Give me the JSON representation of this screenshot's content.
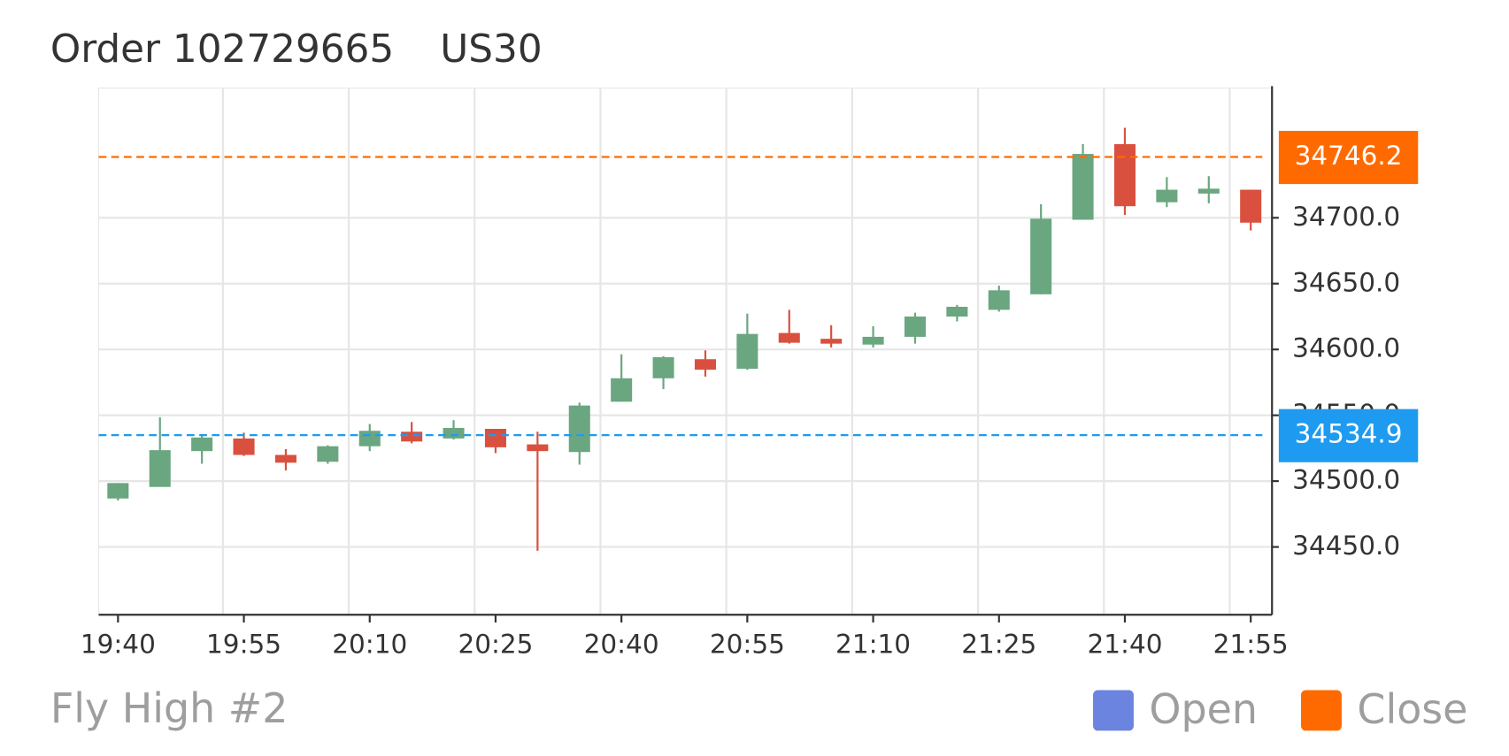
{
  "chart_data": {
    "type": "candlestick",
    "title": "Order 102729665",
    "symbol": "US30",
    "subtitle": "Fly High #2",
    "categories": [
      "19:40",
      null,
      null,
      "19:55",
      null,
      null,
      "20:10",
      null,
      null,
      "20:25",
      null,
      null,
      "20:40",
      null,
      null,
      "20:55",
      null,
      null,
      "21:10",
      null,
      null,
      "21:25",
      null,
      null,
      "21:40",
      null,
      null,
      "21:55"
    ],
    "open": [
      34486.8,
      34495.6,
      34522.8,
      34532.4,
      34519.9,
      34514.7,
      34526.5,
      34537.5,
      34532.4,
      34539.7,
      34527.9,
      34522.1,
      34560.3,
      34578.1,
      34592.6,
      34585.3,
      34612.5,
      34608.1,
      34603.7,
      34609.6,
      34625.0,
      34630.1,
      34641.9,
      34698.5,
      34755.9,
      34711.8,
      34718.4,
      34721.3
    ],
    "high": [
      34498.5,
      34548.5,
      34535.3,
      34536.8,
      34524.3,
      34527.2,
      34543.4,
      34544.9,
      34546.3,
      34539.7,
      34537.5,
      34559.6,
      34596.3,
      34594.9,
      34599.3,
      34627.2,
      34630.1,
      34618.4,
      34617.6,
      34627.9,
      34633.8,
      34648.5,
      34710.3,
      34755.9,
      34768.4,
      34730.9,
      34731.6,
      34721.3
    ],
    "low": [
      34485.3,
      34495.6,
      34513.2,
      34519.1,
      34508.1,
      34513.2,
      34522.8,
      34528.7,
      34531.6,
      34521.3,
      34447.1,
      34512.5,
      34560.3,
      34569.9,
      34579.4,
      34584.6,
      34604.4,
      34601.5,
      34601.5,
      34604.4,
      34621.3,
      34628.7,
      34641.9,
      34698.5,
      34702.2,
      34708.1,
      34711.0,
      34690.4
    ],
    "close": [
      34498.5,
      34523.5,
      34533.1,
      34519.9,
      34514.0,
      34526.5,
      34538.2,
      34530.1,
      34540.4,
      34525.7,
      34522.8,
      34557.4,
      34578.1,
      34594.1,
      34584.6,
      34611.8,
      34605.1,
      34604.4,
      34609.6,
      34625.0,
      34632.4,
      34644.9,
      34699.3,
      34748.5,
      34708.8,
      34721.3,
      34722.1,
      34696.3
    ],
    "up_color": "#6aa67f",
    "down_color": "#d9503f",
    "ylim": [
      34398.5,
      34798.5
    ],
    "yticks": [
      {
        "value": 34450,
        "label": "34450.0"
      },
      {
        "value": 34500,
        "label": "34500.0"
      },
      {
        "value": 34550,
        "label": "34550.0"
      },
      {
        "value": 34600,
        "label": "34600.0"
      },
      {
        "value": 34650,
        "label": "34650.0"
      },
      {
        "value": 34700,
        "label": "34700.0"
      }
    ],
    "grid": true,
    "lines": [
      {
        "value": 34534.9,
        "color": "#1e9bf0"
      },
      {
        "value": 34746.2,
        "color": "#ff6a00"
      }
    ],
    "legend": [
      {
        "name": "Open",
        "color": "#6b84e0"
      },
      {
        "name": "Close",
        "color": "#ff6a00"
      }
    ]
  }
}
